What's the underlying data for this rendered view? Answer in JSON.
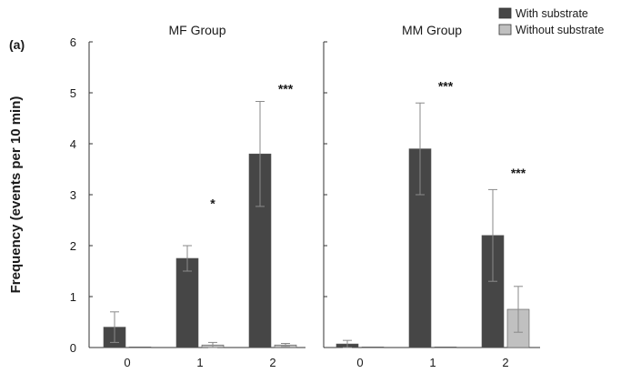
{
  "colors": {
    "with_substrate": "#464646",
    "without_substrate": "#c0c0c0",
    "axis": "#333333",
    "errorbar": "#8a8a8a"
  },
  "chart_data": {
    "type": "bar",
    "panel_label": "(a)",
    "ylabel": "Frequency (events per 10 min)",
    "ylim": [
      0,
      6
    ],
    "yticks": [
      "0",
      "1",
      "2",
      "3",
      "4",
      "5",
      "6"
    ],
    "legend": {
      "placement": "top-right",
      "items": [
        {
          "label": "With substrate",
          "color": "#464646"
        },
        {
          "label": "Without substrate",
          "color": "#c0c0c0"
        }
      ]
    },
    "panels": [
      {
        "title": "MF Group",
        "categories": [
          "0",
          "1",
          "2"
        ],
        "series": [
          {
            "name": "With substrate",
            "values": [
              0.4,
              1.75,
              3.8
            ],
            "errors": [
              0.3,
              0.25,
              1.03
            ]
          },
          {
            "name": "Without substrate",
            "values": [
              0,
              0.05,
              0.05
            ],
            "errors": [
              0,
              0.05,
              0.03
            ]
          }
        ],
        "annotations": [
          {
            "category": "1",
            "text": "*",
            "y": 2.85
          },
          {
            "category": "2",
            "text": "***",
            "y": 5.1
          }
        ]
      },
      {
        "title": "MM Group",
        "categories": [
          "0",
          "1",
          "2"
        ],
        "series": [
          {
            "name": "With substrate",
            "values": [
              0.07,
              3.9,
              2.2
            ],
            "errors": [
              0.07,
              0.9,
              0.9
            ]
          },
          {
            "name": "Without substrate",
            "values": [
              0,
              0,
              0.75
            ],
            "errors": [
              0,
              0,
              0.45
            ]
          }
        ],
        "annotations": [
          {
            "category": "1",
            "text": "***",
            "y": 5.15
          },
          {
            "category": "2",
            "text": "***",
            "y": 3.45
          }
        ]
      }
    ]
  }
}
